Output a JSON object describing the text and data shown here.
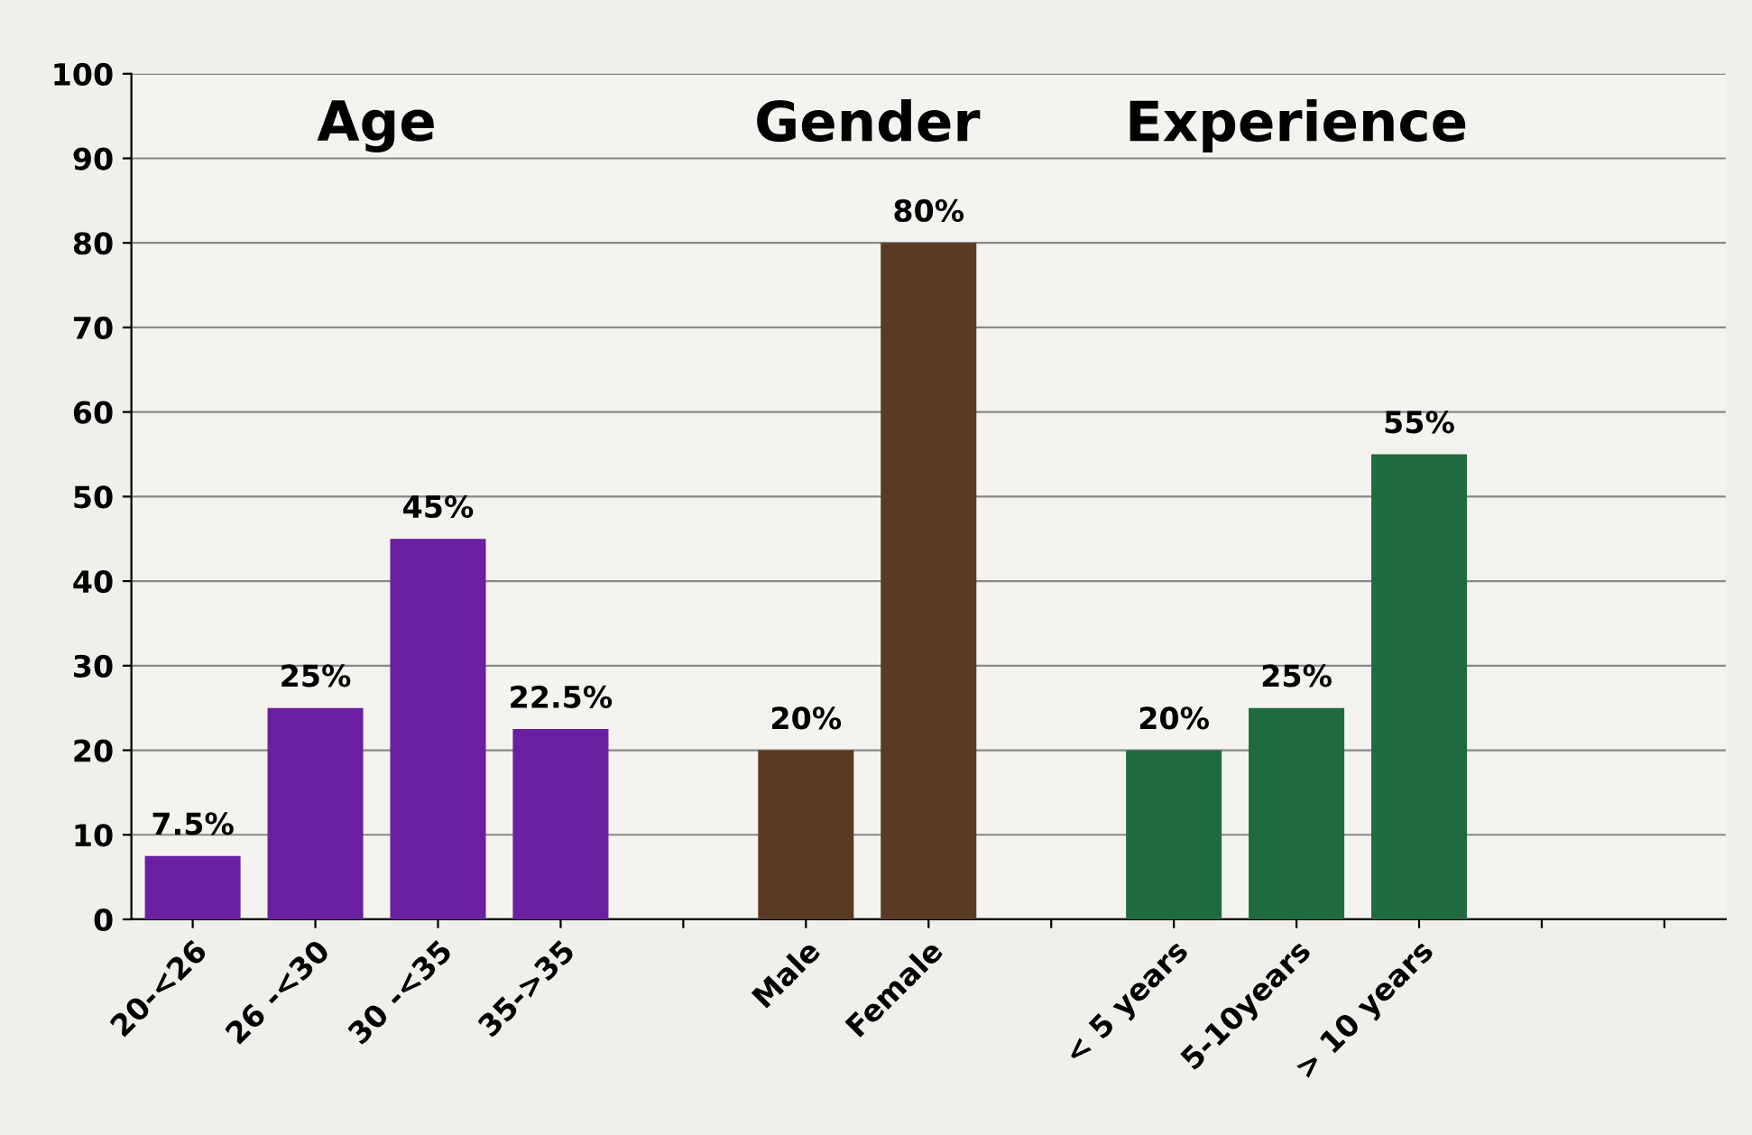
{
  "chart_data": {
    "type": "bar",
    "categories": [
      "20-<26",
      "26 -<30",
      "30 -<35",
      "35->35",
      null,
      "Male",
      "Female",
      null,
      "< 5 years",
      "5-10years",
      "> 10 years",
      null,
      null
    ],
    "series": [
      {
        "color": "#6a1fa0",
        "values": [
          7.5,
          25,
          45,
          22.5,
          null,
          null,
          null,
          null,
          null,
          null,
          null,
          null,
          null
        ],
        "value_labels": [
          "7.5%",
          "25%",
          "45%",
          "22.5%",
          null,
          null,
          null,
          null,
          null,
          null,
          null,
          null,
          null
        ]
      },
      {
        "color": "#5a3a22",
        "values": [
          null,
          null,
          null,
          null,
          null,
          20,
          80,
          null,
          null,
          null,
          null,
          null,
          null
        ],
        "value_labels": [
          null,
          null,
          null,
          null,
          null,
          "20%",
          "80%",
          null,
          null,
          null,
          null,
          null,
          null
        ]
      },
      {
        "color": "#1f6b3f",
        "values": [
          null,
          null,
          null,
          null,
          null,
          null,
          null,
          null,
          20,
          25,
          55,
          null,
          null
        ],
        "value_labels": [
          null,
          null,
          null,
          null,
          null,
          null,
          null,
          null,
          "20%",
          "25%",
          "55%",
          null,
          null
        ]
      }
    ],
    "annotations": [
      "Age",
      "Gender",
      "Experience"
    ],
    "ylim": [
      0,
      100
    ],
    "yticks": [
      0,
      10,
      20,
      30,
      40,
      50,
      60,
      70,
      80,
      90,
      100
    ],
    "grid": "y",
    "legend": false
  }
}
